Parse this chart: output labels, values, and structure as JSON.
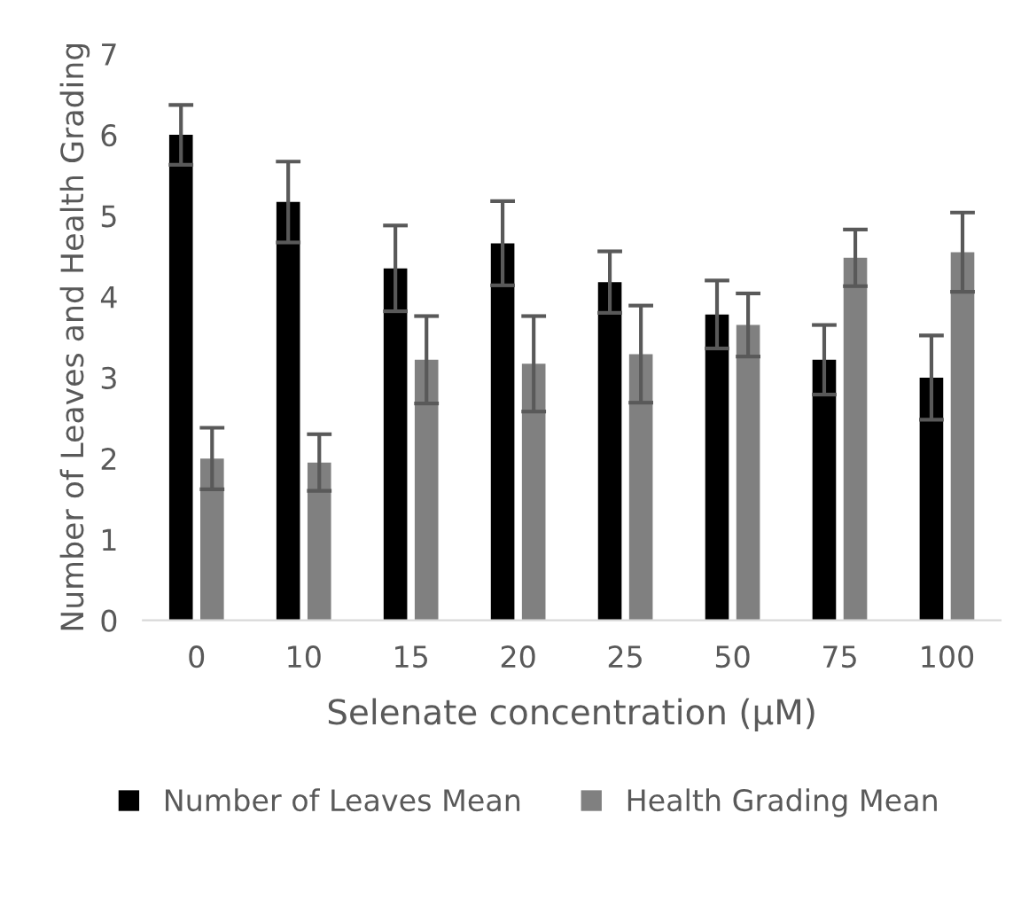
{
  "chart_data": {
    "type": "bar",
    "xlabel": "Selenate concentration (μM)",
    "ylabel": "Number of Leaves and Health Grading",
    "categories": [
      "0",
      "10",
      "15",
      "20",
      "25",
      "50",
      "75",
      "100"
    ],
    "series": [
      {
        "name": "Number of Leaves Mean",
        "color": "#000000",
        "values": [
          6.0,
          5.17,
          4.35,
          4.66,
          4.18,
          3.78,
          3.22,
          3.0
        ],
        "errors": [
          0.37,
          0.5,
          0.53,
          0.52,
          0.38,
          0.42,
          0.43,
          0.52
        ]
      },
      {
        "name": "Health Grading Mean",
        "color": "#808080",
        "values": [
          2.0,
          1.95,
          3.22,
          3.17,
          3.29,
          3.65,
          4.48,
          4.55
        ],
        "errors": [
          0.38,
          0.35,
          0.54,
          0.59,
          0.6,
          0.39,
          0.35,
          0.49
        ]
      }
    ],
    "ylim": [
      0,
      7
    ],
    "yticks": [
      0,
      1,
      2,
      3,
      4,
      5,
      6,
      7
    ],
    "grid": false,
    "legend": "bottom"
  }
}
